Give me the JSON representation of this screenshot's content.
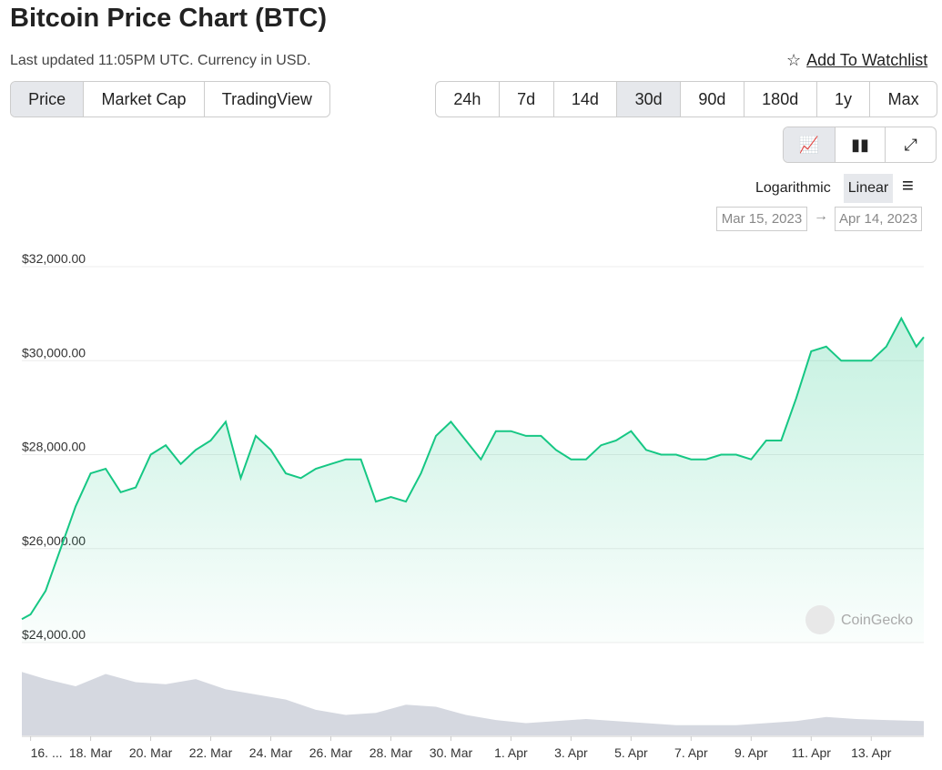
{
  "header": {
    "title": "Bitcoin Price Chart (BTC)",
    "updated": "Last updated 11:05PM UTC. Currency in USD.",
    "watchlist": "Add To Watchlist"
  },
  "tabs": [
    "Price",
    "Market Cap",
    "TradingView"
  ],
  "ranges": [
    "24h",
    "7d",
    "14d",
    "30d",
    "90d",
    "180d",
    "1y",
    "Max"
  ],
  "scale_options": [
    "Logarithmic",
    "Linear"
  ],
  "date_range": {
    "from": "Mar 15, 2023",
    "to": "Apr 14, 2023"
  },
  "watermark": "CoinGecko",
  "chart_data": {
    "type": "line",
    "color": "#16c784",
    "grid": true,
    "x": [
      "2023-03-15T17:00",
      "2023-03-16T00:00",
      "2023-03-16T12:00",
      "2023-03-17T00:00",
      "2023-03-17T12:00",
      "2023-03-18T00:00",
      "2023-03-18T12:00",
      "2023-03-19T00:00",
      "2023-03-19T12:00",
      "2023-03-20T00:00",
      "2023-03-20T12:00",
      "2023-03-21T00:00",
      "2023-03-21T12:00",
      "2023-03-22T00:00",
      "2023-03-22T12:00",
      "2023-03-23T00:00",
      "2023-03-23T12:00",
      "2023-03-24T00:00",
      "2023-03-24T12:00",
      "2023-03-25T00:00",
      "2023-03-25T12:00",
      "2023-03-26T00:00",
      "2023-03-26T12:00",
      "2023-03-27T00:00",
      "2023-03-27T12:00",
      "2023-03-28T00:00",
      "2023-03-28T12:00",
      "2023-03-29T00:00",
      "2023-03-29T12:00",
      "2023-03-30T00:00",
      "2023-03-30T12:00",
      "2023-03-31T00:00",
      "2023-03-31T12:00",
      "2023-04-01T00:00",
      "2023-04-01T12:00",
      "2023-04-02T00:00",
      "2023-04-02T12:00",
      "2023-04-03T00:00",
      "2023-04-03T12:00",
      "2023-04-04T00:00",
      "2023-04-04T12:00",
      "2023-04-05T00:00",
      "2023-04-05T12:00",
      "2023-04-06T00:00",
      "2023-04-06T12:00",
      "2023-04-07T00:00",
      "2023-04-07T12:00",
      "2023-04-08T00:00",
      "2023-04-08T12:00",
      "2023-04-09T00:00",
      "2023-04-09T12:00",
      "2023-04-10T00:00",
      "2023-04-10T12:00",
      "2023-04-11T00:00",
      "2023-04-11T12:00",
      "2023-04-12T00:00",
      "2023-04-12T12:00",
      "2023-04-13T00:00",
      "2023-04-13T12:00",
      "2023-04-14T00:00",
      "2023-04-14T12:00",
      "2023-04-14T18:00"
    ],
    "series": [
      {
        "name": "Price",
        "color": "#16c784",
        "values": [
          24500,
          24600,
          25100,
          26000,
          26900,
          27600,
          27700,
          27200,
          27300,
          28000,
          28200,
          27800,
          28100,
          28300,
          28700,
          27500,
          28400,
          28100,
          27600,
          27500,
          27700,
          27800,
          27900,
          27900,
          27000,
          27100,
          27000,
          27600,
          28400,
          28700,
          28300,
          27900,
          28500,
          28500,
          28400,
          28400,
          28100,
          27900,
          27900,
          28200,
          28300,
          28500,
          28100,
          28000,
          28000,
          27900,
          27900,
          28000,
          28000,
          27900,
          28300,
          28300,
          29200,
          30200,
          30300,
          30000,
          30000,
          30000,
          30300,
          30900,
          30300,
          30500
        ]
      }
    ],
    "volume": {
      "color": "#d5d8e0",
      "x": [
        "2023-03-15T17:00",
        "2023-03-16T12:00",
        "2023-03-17T12:00",
        "2023-03-18T12:00",
        "2023-03-19T12:00",
        "2023-03-20T12:00",
        "2023-03-21T12:00",
        "2023-03-22T12:00",
        "2023-03-23T12:00",
        "2023-03-24T12:00",
        "2023-03-25T12:00",
        "2023-03-26T12:00",
        "2023-03-27T12:00",
        "2023-03-28T12:00",
        "2023-03-29T12:00",
        "2023-03-30T12:00",
        "2023-03-31T12:00",
        "2023-04-01T12:00",
        "2023-04-02T12:00",
        "2023-04-03T12:00",
        "2023-04-04T12:00",
        "2023-04-05T12:00",
        "2023-04-06T12:00",
        "2023-04-07T12:00",
        "2023-04-08T12:00",
        "2023-04-09T12:00",
        "2023-04-10T12:00",
        "2023-04-11T12:00",
        "2023-04-12T12:00",
        "2023-04-13T12:00",
        "2023-04-14T18:00"
      ],
      "values": [
        62,
        55,
        48,
        60,
        52,
        50,
        55,
        45,
        40,
        35,
        25,
        20,
        22,
        30,
        28,
        20,
        15,
        12,
        14,
        16,
        14,
        12,
        10,
        10,
        10,
        12,
        14,
        18,
        16,
        15,
        14
      ],
      "y2lim": [
        0,
        80
      ]
    },
    "xlim": [
      "2023-03-15T17:00",
      "2023-04-14T18:00"
    ],
    "xticks": [
      {
        "value": "2023-03-16T00:00",
        "label": "16. ..."
      },
      {
        "value": "2023-03-18T00:00",
        "label": "18. Mar"
      },
      {
        "value": "2023-03-20T00:00",
        "label": "20. Mar"
      },
      {
        "value": "2023-03-22T00:00",
        "label": "22. Mar"
      },
      {
        "value": "2023-03-24T00:00",
        "label": "24. Mar"
      },
      {
        "value": "2023-03-26T00:00",
        "label": "26. Mar"
      },
      {
        "value": "2023-03-28T00:00",
        "label": "28. Mar"
      },
      {
        "value": "2023-03-30T00:00",
        "label": "30. Mar"
      },
      {
        "value": "2023-04-01T00:00",
        "label": "1. Apr"
      },
      {
        "value": "2023-04-03T00:00",
        "label": "3. Apr"
      },
      {
        "value": "2023-04-05T00:00",
        "label": "5. Apr"
      },
      {
        "value": "2023-04-07T00:00",
        "label": "7. Apr"
      },
      {
        "value": "2023-04-09T00:00",
        "label": "9. Apr"
      },
      {
        "value": "2023-04-11T00:00",
        "label": "11. Apr"
      },
      {
        "value": "2023-04-13T00:00",
        "label": "13. Apr"
      }
    ],
    "ylim": [
      24000,
      32000
    ],
    "yticks": [
      {
        "value": 24000,
        "label": "$24,000.00"
      },
      {
        "value": 26000,
        "label": "$26,000.00"
      },
      {
        "value": 28000,
        "label": "$28,000.00"
      },
      {
        "value": 30000,
        "label": "$30,000.00"
      },
      {
        "value": 32000,
        "label": "$32,000.00"
      }
    ]
  }
}
